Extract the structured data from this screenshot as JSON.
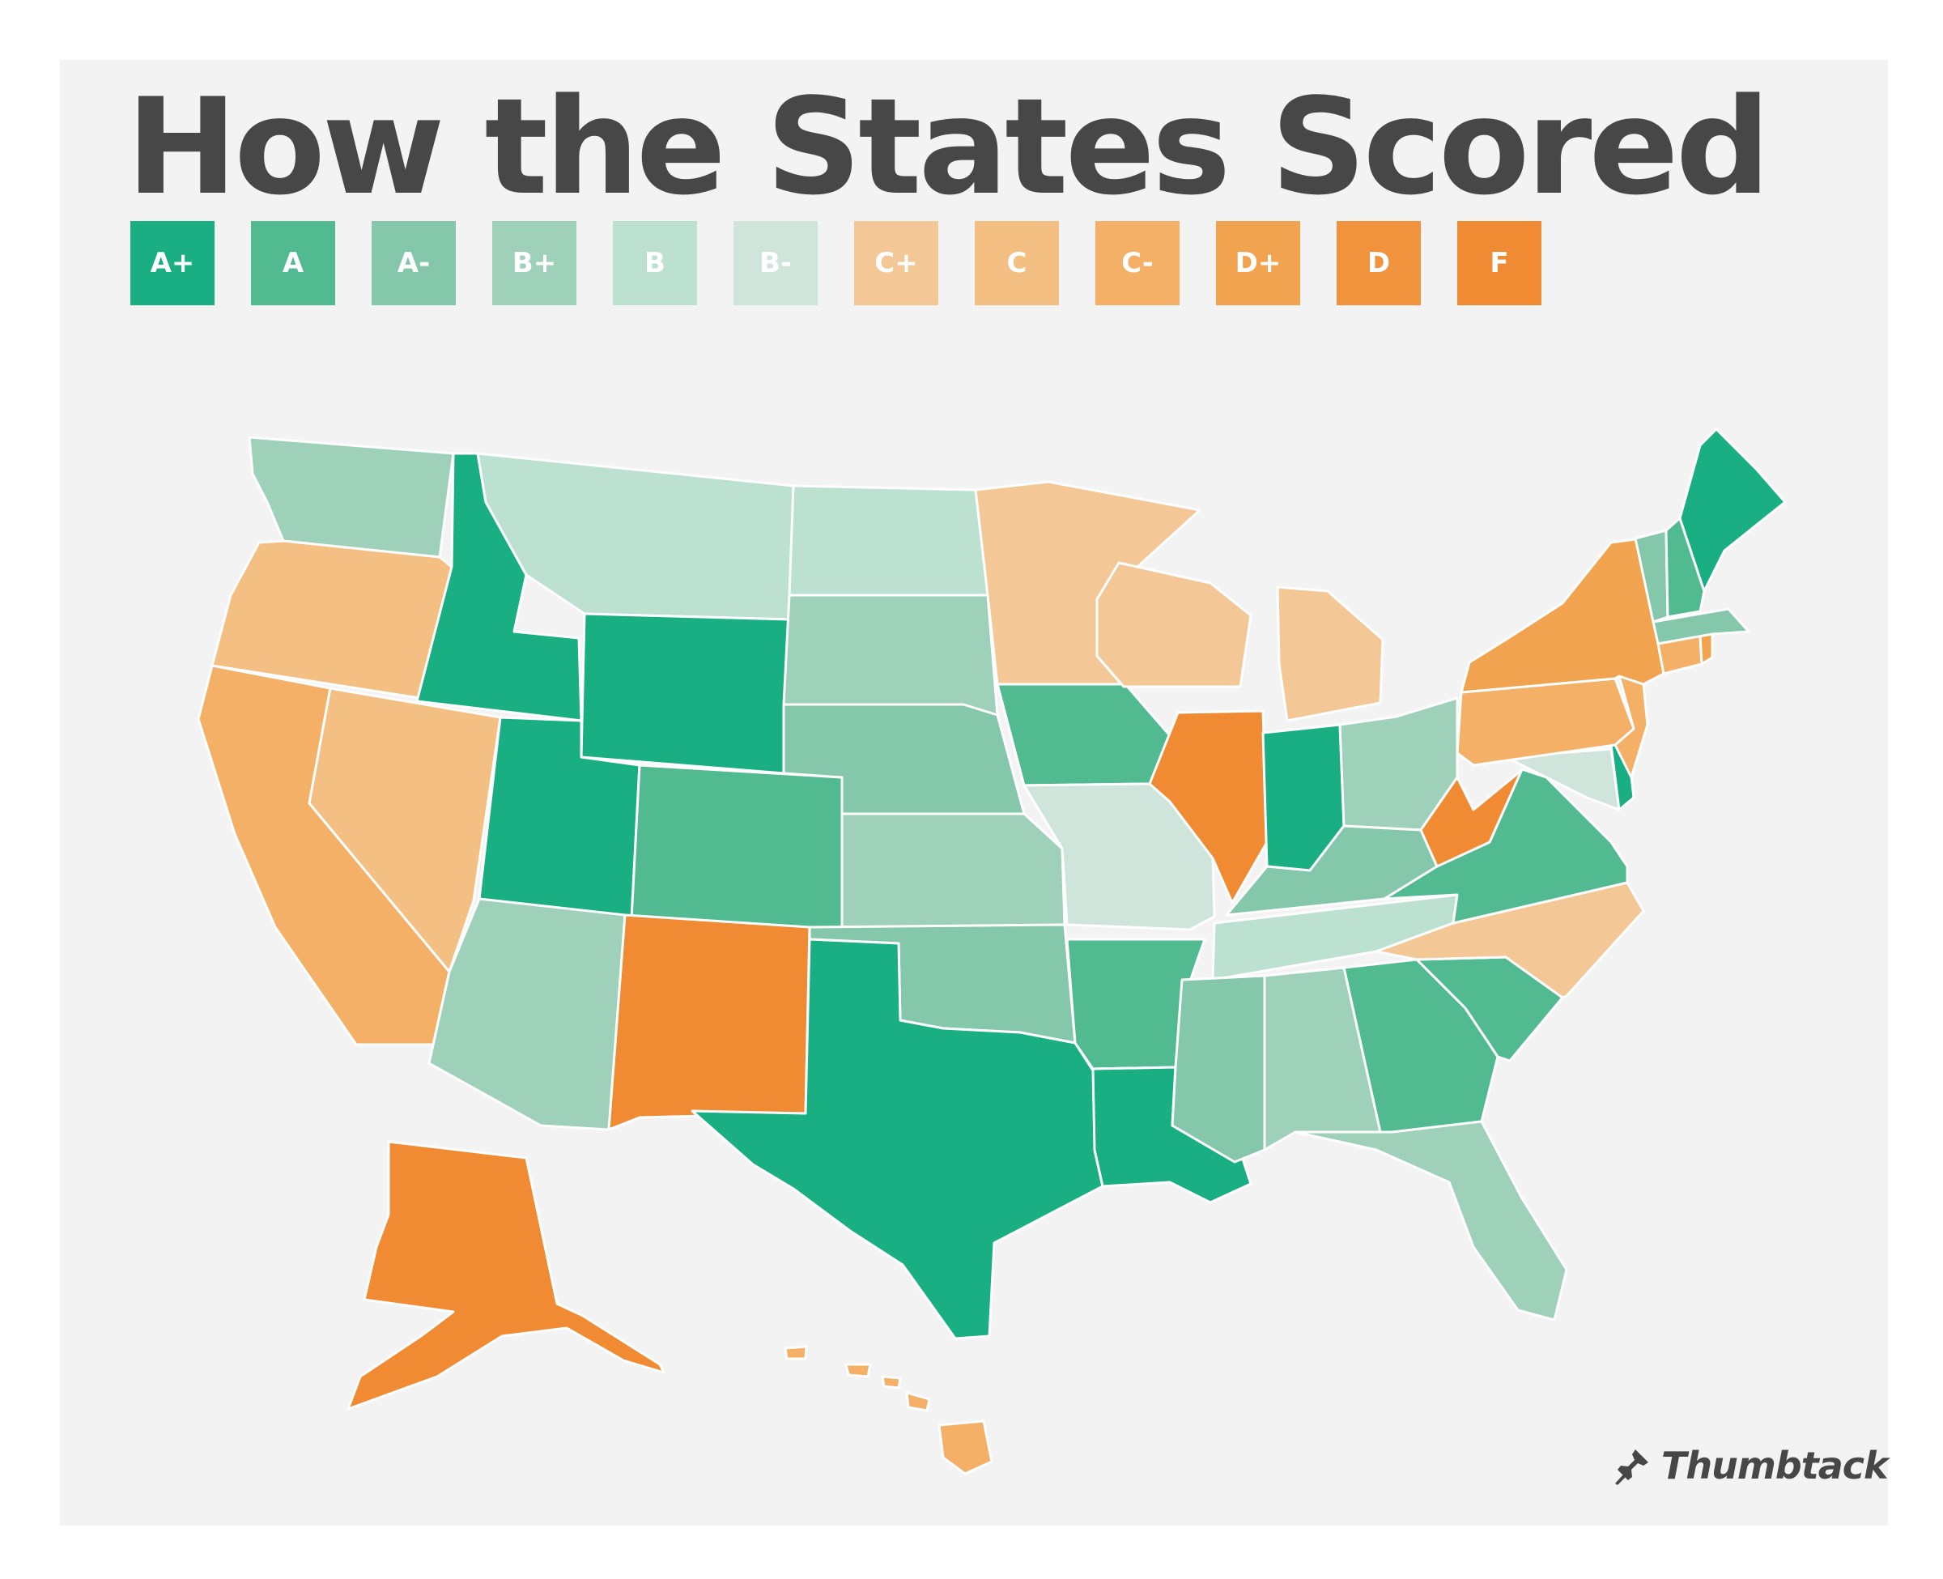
{
  "title": "How the States Scored",
  "legend": [
    {
      "grade": "A+",
      "color": "#1aaf83"
    },
    {
      "grade": "A",
      "color": "#52ba91"
    },
    {
      "grade": "A-",
      "color": "#84c7aa"
    },
    {
      "grade": "B+",
      "color": "#9fd0b9"
    },
    {
      "grade": "B",
      "color": "#bce1d1"
    },
    {
      "grade": "B-",
      "color": "#cfe5dc"
    },
    {
      "grade": "C+",
      "color": "#f4c797"
    },
    {
      "grade": "C",
      "color": "#f3bf82"
    },
    {
      "grade": "C-",
      "color": "#f3b066"
    },
    {
      "grade": "D+",
      "color": "#f2a34f"
    },
    {
      "grade": "D",
      "color": "#f1923c"
    },
    {
      "grade": "F",
      "color": "#f08a33"
    }
  ],
  "states": [
    {
      "id": "WA",
      "grade": "B+"
    },
    {
      "id": "OR",
      "grade": "C"
    },
    {
      "id": "CA",
      "grade": "C-"
    },
    {
      "id": "ID",
      "grade": "A+"
    },
    {
      "id": "NV",
      "grade": "C"
    },
    {
      "id": "MT",
      "grade": "B"
    },
    {
      "id": "WY",
      "grade": "A+"
    },
    {
      "id": "UT",
      "grade": "A+"
    },
    {
      "id": "AZ",
      "grade": "B+"
    },
    {
      "id": "CO",
      "grade": "A"
    },
    {
      "id": "NM",
      "grade": "F"
    },
    {
      "id": "ND",
      "grade": "B"
    },
    {
      "id": "SD",
      "grade": "B+"
    },
    {
      "id": "NE",
      "grade": "A-"
    },
    {
      "id": "KS",
      "grade": "B+"
    },
    {
      "id": "OK",
      "grade": "A-"
    },
    {
      "id": "TX",
      "grade": "A+"
    },
    {
      "id": "MN",
      "grade": "C+"
    },
    {
      "id": "IA",
      "grade": "A"
    },
    {
      "id": "MO",
      "grade": "B-"
    },
    {
      "id": "AR",
      "grade": "A"
    },
    {
      "id": "LA",
      "grade": "A+"
    },
    {
      "id": "WI",
      "grade": "C+"
    },
    {
      "id": "IL",
      "grade": "F"
    },
    {
      "id": "MI",
      "grade": "C+"
    },
    {
      "id": "IN",
      "grade": "A+"
    },
    {
      "id": "OH",
      "grade": "B+"
    },
    {
      "id": "KY",
      "grade": "A-"
    },
    {
      "id": "TN",
      "grade": "B"
    },
    {
      "id": "MS",
      "grade": "A-"
    },
    {
      "id": "AL",
      "grade": "B+"
    },
    {
      "id": "GA",
      "grade": "A"
    },
    {
      "id": "FL",
      "grade": "B+"
    },
    {
      "id": "SC",
      "grade": "A"
    },
    {
      "id": "NC",
      "grade": "C+"
    },
    {
      "id": "VA",
      "grade": "A"
    },
    {
      "id": "WV",
      "grade": "F"
    },
    {
      "id": "MD",
      "grade": "B-"
    },
    {
      "id": "DE",
      "grade": "A+"
    },
    {
      "id": "PA",
      "grade": "C-"
    },
    {
      "id": "NJ",
      "grade": "C-"
    },
    {
      "id": "NY",
      "grade": "D+"
    },
    {
      "id": "CT",
      "grade": "C-"
    },
    {
      "id": "RI",
      "grade": "D+"
    },
    {
      "id": "MA",
      "grade": "A-"
    },
    {
      "id": "VT",
      "grade": "A-"
    },
    {
      "id": "NH",
      "grade": "A"
    },
    {
      "id": "ME",
      "grade": "A+"
    },
    {
      "id": "AK",
      "grade": "F"
    },
    {
      "id": "HI",
      "grade": "C-"
    }
  ],
  "brand": {
    "name": "Thumbtack",
    "icon": "thumbtack-icon"
  }
}
